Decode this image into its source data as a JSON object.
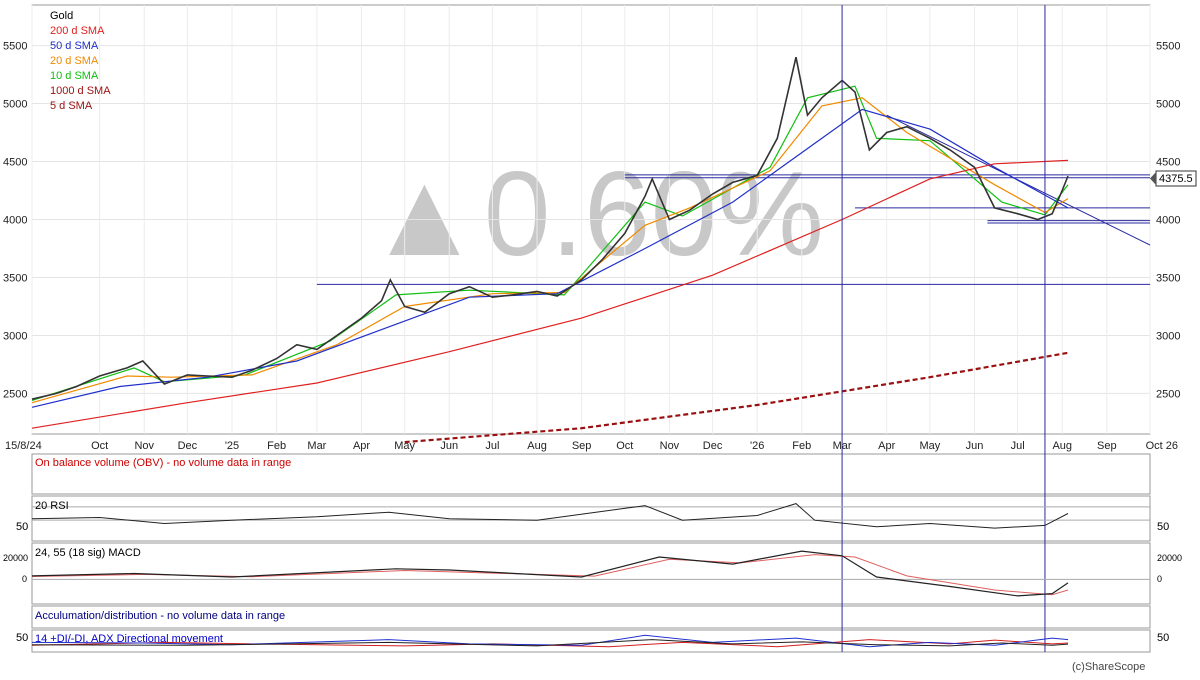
{
  "legend": {
    "title": "Gold",
    "items": [
      {
        "label": "200 d  SMA",
        "color": "#e02020"
      },
      {
        "label": "50 d  SMA",
        "color": "#2030c8"
      },
      {
        "label": "20 d  SMA",
        "color": "#f08a00"
      },
      {
        "label": "10 d  SMA",
        "color": "#10c010"
      },
      {
        "label": "1000 d  SMA",
        "color": "#9a1010"
      },
      {
        "label": "5 d  SMA",
        "color": "#9a1010"
      }
    ]
  },
  "overlay_text": "▲0.60%",
  "last_price_label": "4375.5",
  "watermark": "(c)ShareScope",
  "chart_data": {
    "type": "line",
    "title": "Gold",
    "x_start": "15/8/24",
    "x_end": "Oct 26",
    "ylim": [
      2150,
      5850
    ],
    "y_ticks": [
      2500,
      3000,
      3500,
      4000,
      4500,
      5000,
      5500
    ],
    "x_ticks": [
      {
        "label": "15/8/24",
        "date": "2024-08-15"
      },
      {
        "label": "Oct",
        "date": "2024-10-01"
      },
      {
        "label": "Nov",
        "date": "2024-11-01"
      },
      {
        "label": "Dec",
        "date": "2024-12-01"
      },
      {
        "label": "'25",
        "date": "2025-01-01"
      },
      {
        "label": "Feb",
        "date": "2025-02-01"
      },
      {
        "label": "Mar",
        "date": "2025-03-01"
      },
      {
        "label": "Apr",
        "date": "2025-04-01"
      },
      {
        "label": "May",
        "date": "2025-05-01"
      },
      {
        "label": "Jun",
        "date": "2025-06-01"
      },
      {
        "label": "Jul",
        "date": "2025-07-01"
      },
      {
        "label": "Aug",
        "date": "2025-08-01"
      },
      {
        "label": "Sep",
        "date": "2025-09-01"
      },
      {
        "label": "Oct",
        "date": "2025-10-01"
      },
      {
        "label": "Nov",
        "date": "2025-11-01"
      },
      {
        "label": "Dec",
        "date": "2025-12-01"
      },
      {
        "label": "'26",
        "date": "2026-01-01"
      },
      {
        "label": "Feb",
        "date": "2026-02-01"
      },
      {
        "label": "Mar",
        "date": "2026-03-01"
      },
      {
        "label": "Apr",
        "date": "2026-04-01"
      },
      {
        "label": "May",
        "date": "2026-05-01"
      },
      {
        "label": "Jun",
        "date": "2026-06-01"
      },
      {
        "label": "Jul",
        "date": "2026-07-01"
      },
      {
        "label": "Aug",
        "date": "2026-08-01"
      },
      {
        "label": "Sep",
        "date": "2026-09-01"
      },
      {
        "label": "Oct 26",
        "date": "2026-10-01"
      }
    ],
    "series": [
      {
        "name": "Gold",
        "color": "#333333",
        "points": [
          [
            "2024-08-15",
            2450
          ],
          [
            "2024-09-01",
            2500
          ],
          [
            "2024-09-15",
            2560
          ],
          [
            "2024-10-01",
            2650
          ],
          [
            "2024-10-20",
            2720
          ],
          [
            "2024-10-31",
            2780
          ],
          [
            "2024-11-15",
            2580
          ],
          [
            "2024-12-01",
            2660
          ],
          [
            "2024-12-15",
            2650
          ],
          [
            "2025-01-01",
            2640
          ],
          [
            "2025-01-15",
            2700
          ],
          [
            "2025-02-01",
            2800
          ],
          [
            "2025-02-15",
            2920
          ],
          [
            "2025-03-01",
            2880
          ],
          [
            "2025-03-15",
            3000
          ],
          [
            "2025-04-01",
            3150
          ],
          [
            "2025-04-15",
            3300
          ],
          [
            "2025-04-21",
            3480
          ],
          [
            "2025-05-01",
            3250
          ],
          [
            "2025-05-15",
            3200
          ],
          [
            "2025-06-01",
            3360
          ],
          [
            "2025-06-15",
            3420
          ],
          [
            "2025-07-01",
            3330
          ],
          [
            "2025-07-15",
            3350
          ],
          [
            "2025-08-01",
            3380
          ],
          [
            "2025-08-15",
            3340
          ],
          [
            "2025-09-01",
            3480
          ],
          [
            "2025-09-15",
            3650
          ],
          [
            "2025-10-01",
            3880
          ],
          [
            "2025-10-15",
            4200
          ],
          [
            "2025-10-20",
            4350
          ],
          [
            "2025-11-01",
            4000
          ],
          [
            "2025-11-15",
            4080
          ],
          [
            "2025-12-01",
            4220
          ],
          [
            "2025-12-15",
            4320
          ],
          [
            "2026-01-01",
            4380
          ],
          [
            "2026-01-15",
            4700
          ],
          [
            "2026-01-28",
            5400
          ],
          [
            "2026-02-05",
            4900
          ],
          [
            "2026-02-15",
            5050
          ],
          [
            "2026-03-01",
            5200
          ],
          [
            "2026-03-10",
            5100
          ],
          [
            "2026-03-20",
            4600
          ],
          [
            "2026-04-01",
            4750
          ],
          [
            "2026-04-15",
            4800
          ],
          [
            "2026-05-01",
            4700
          ],
          [
            "2026-05-15",
            4600
          ],
          [
            "2026-06-01",
            4450
          ],
          [
            "2026-06-15",
            4100
          ],
          [
            "2026-07-01",
            4050
          ],
          [
            "2026-07-15",
            4000
          ],
          [
            "2026-07-25",
            4050
          ],
          [
            "2026-08-01",
            4250
          ],
          [
            "2026-08-05",
            4375.5
          ]
        ]
      },
      {
        "name": "200 d  SMA",
        "color": "#e02020",
        "points": [
          [
            "2024-08-15",
            2200
          ],
          [
            "2024-12-01",
            2420
          ],
          [
            "2025-03-01",
            2590
          ],
          [
            "2025-06-01",
            2860
          ],
          [
            "2025-09-01",
            3150
          ],
          [
            "2025-12-01",
            3520
          ],
          [
            "2026-03-01",
            4000
          ],
          [
            "2026-05-01",
            4350
          ],
          [
            "2026-06-15",
            4480
          ],
          [
            "2026-08-05",
            4510
          ]
        ]
      },
      {
        "name": "50 d  SMA",
        "color": "#2030c8",
        "points": [
          [
            "2024-08-15",
            2380
          ],
          [
            "2024-10-15",
            2560
          ],
          [
            "2024-12-15",
            2640
          ],
          [
            "2025-02-15",
            2780
          ],
          [
            "2025-04-15",
            3050
          ],
          [
            "2025-06-15",
            3330
          ],
          [
            "2025-08-15",
            3360
          ],
          [
            "2025-10-15",
            3750
          ],
          [
            "2025-12-15",
            4150
          ],
          [
            "2026-02-15",
            4700
          ],
          [
            "2026-03-15",
            4950
          ],
          [
            "2026-05-01",
            4780
          ],
          [
            "2026-06-15",
            4450
          ],
          [
            "2026-08-05",
            4100
          ]
        ]
      },
      {
        "name": "20 d  SMA",
        "color": "#f08a00",
        "points": [
          [
            "2024-08-15",
            2420
          ],
          [
            "2024-10-20",
            2650
          ],
          [
            "2024-11-20",
            2640
          ],
          [
            "2025-01-15",
            2660
          ],
          [
            "2025-03-15",
            2920
          ],
          [
            "2025-05-01",
            3250
          ],
          [
            "2025-07-01",
            3360
          ],
          [
            "2025-08-20",
            3370
          ],
          [
            "2025-10-15",
            3950
          ],
          [
            "2025-11-15",
            4100
          ],
          [
            "2026-01-10",
            4420
          ],
          [
            "2026-02-15",
            4980
          ],
          [
            "2026-03-15",
            5050
          ],
          [
            "2026-04-15",
            4750
          ],
          [
            "2026-06-15",
            4300
          ],
          [
            "2026-07-20",
            4060
          ],
          [
            "2026-08-05",
            4180
          ]
        ]
      },
      {
        "name": "10 d  SMA",
        "color": "#10c010",
        "points": [
          [
            "2024-08-15",
            2440
          ],
          [
            "2024-10-25",
            2720
          ],
          [
            "2024-11-15",
            2600
          ],
          [
            "2025-01-10",
            2660
          ],
          [
            "2025-03-10",
            2950
          ],
          [
            "2025-04-25",
            3350
          ],
          [
            "2025-06-15",
            3390
          ],
          [
            "2025-08-20",
            3350
          ],
          [
            "2025-10-15",
            4150
          ],
          [
            "2025-11-10",
            4030
          ],
          [
            "2026-01-10",
            4450
          ],
          [
            "2026-02-05",
            5050
          ],
          [
            "2026-03-10",
            5150
          ],
          [
            "2026-03-25",
            4700
          ],
          [
            "2026-05-01",
            4680
          ],
          [
            "2026-06-20",
            4150
          ],
          [
            "2026-07-20",
            4040
          ],
          [
            "2026-08-05",
            4300
          ]
        ]
      },
      {
        "name": "1000 d  SMA",
        "color": "#9a1010",
        "dashed": true,
        "points": [
          [
            "2025-05-01",
            2080
          ],
          [
            "2025-09-01",
            2200
          ],
          [
            "2026-01-01",
            2400
          ],
          [
            "2026-05-01",
            2640
          ],
          [
            "2026-08-05",
            2850
          ]
        ]
      }
    ],
    "vertical_lines": [
      "2026-03-01",
      "2026-07-20"
    ],
    "horizontal_lines": [
      {
        "y": 3440,
        "x_from": "2025-03-01",
        "x_to": "2026-10-01"
      },
      {
        "y": 4385,
        "x_from": "2025-10-01",
        "x_to": "2026-10-01"
      },
      {
        "y": 4360,
        "x_from": "2025-10-01",
        "x_to": "2026-10-01"
      },
      {
        "y": 4100,
        "x_from": "2026-03-10",
        "x_to": "2026-10-01"
      },
      {
        "y": 3990,
        "x_from": "2026-06-10",
        "x_to": "2026-10-01"
      },
      {
        "y": 3970,
        "x_from": "2026-06-10",
        "x_to": "2026-10-01"
      }
    ],
    "trend_lines": [
      {
        "from": [
          "2026-04-01",
          4900
        ],
        "to": [
          "2026-10-01",
          3780
        ]
      }
    ],
    "indicators": [
      {
        "label": "On balance volume (OBV) - no volume data in range",
        "label_color": "#cc0000"
      },
      {
        "label": "20 RSI",
        "label_color": "#000000",
        "right_tick": "50",
        "left_tick": "50"
      },
      {
        "label": "24, 55 (18 sig) MACD",
        "label_color": "#000000",
        "right_ticks": [
          "20000",
          "0"
        ],
        "left_ticks": [
          "20000",
          "0"
        ]
      },
      {
        "label": "Acculumation/distribution - no volume data in range",
        "label_color": "#000080"
      },
      {
        "label": "14 +DI/-DI, ADX Directional movement",
        "label_color": "#0000cc",
        "right_tick": "50",
        "left_tick": "50"
      }
    ],
    "rsi": {
      "points": [
        [
          "2024-08-15",
          52
        ],
        [
          "2024-10-01",
          54
        ],
        [
          "2024-11-15",
          45
        ],
        [
          "2025-01-01",
          50
        ],
        [
          "2025-03-01",
          55
        ],
        [
          "2025-04-20",
          62
        ],
        [
          "2025-06-01",
          52
        ],
        [
          "2025-08-01",
          50
        ],
        [
          "2025-10-15",
          72
        ],
        [
          "2025-11-10",
          50
        ],
        [
          "2026-01-01",
          57
        ],
        [
          "2026-01-28",
          75
        ],
        [
          "2026-02-10",
          50
        ],
        [
          "2026-03-25",
          40
        ],
        [
          "2026-05-01",
          45
        ],
        [
          "2026-06-15",
          38
        ],
        [
          "2026-07-20",
          42
        ],
        [
          "2026-08-05",
          60
        ]
      ]
    },
    "macd": {
      "macd_points": [
        [
          "2024-08-15",
          3000
        ],
        [
          "2024-10-25",
          5000
        ],
        [
          "2025-01-01",
          2000
        ],
        [
          "2025-04-25",
          9000
        ],
        [
          "2025-06-01",
          8000
        ],
        [
          "2025-09-01",
          2000
        ],
        [
          "2025-10-25",
          19000
        ],
        [
          "2025-12-15",
          13000
        ],
        [
          "2026-02-01",
          24000
        ],
        [
          "2026-03-01",
          20000
        ],
        [
          "2026-03-25",
          2000
        ],
        [
          "2026-05-15",
          -6000
        ],
        [
          "2026-07-01",
          -14000
        ],
        [
          "2026-07-25",
          -12000
        ],
        [
          "2026-08-05",
          -3000
        ]
      ],
      "signal_points": [
        [
          "2024-08-15",
          2500
        ],
        [
          "2024-11-01",
          4200
        ],
        [
          "2025-01-15",
          2300
        ],
        [
          "2025-05-01",
          7500
        ],
        [
          "2025-09-10",
          2800
        ],
        [
          "2025-11-01",
          17000
        ],
        [
          "2025-12-20",
          14000
        ],
        [
          "2026-02-10",
          21000
        ],
        [
          "2026-03-10",
          19000
        ],
        [
          "2026-04-15",
          3000
        ],
        [
          "2026-06-15",
          -9000
        ],
        [
          "2026-07-25",
          -13000
        ],
        [
          "2026-08-05",
          -9000
        ]
      ]
    },
    "dmi": {
      "pdi_points": [
        [
          "2024-08-15",
          30
        ],
        [
          "2024-11-01",
          28
        ],
        [
          "2025-01-01",
          22
        ],
        [
          "2025-04-20",
          40
        ],
        [
          "2025-06-15",
          25
        ],
        [
          "2025-09-01",
          20
        ],
        [
          "2025-10-15",
          55
        ],
        [
          "2025-12-01",
          30
        ],
        [
          "2026-01-28",
          45
        ],
        [
          "2026-03-20",
          15
        ],
        [
          "2026-05-01",
          30
        ],
        [
          "2026-06-15",
          20
        ],
        [
          "2026-07-25",
          45
        ],
        [
          "2026-08-05",
          40
        ]
      ],
      "mdi_points": [
        [
          "2024-08-15",
          20
        ],
        [
          "2024-11-15",
          30
        ],
        [
          "2025-01-15",
          25
        ],
        [
          "2025-05-01",
          18
        ],
        [
          "2025-07-01",
          25
        ],
        [
          "2025-09-20",
          15
        ],
        [
          "2025-11-10",
          30
        ],
        [
          "2026-01-15",
          15
        ],
        [
          "2026-03-20",
          40
        ],
        [
          "2026-05-15",
          25
        ],
        [
          "2026-06-15",
          38
        ],
        [
          "2026-07-25",
          25
        ],
        [
          "2026-08-05",
          28
        ]
      ],
      "adx_points": [
        [
          "2024-08-15",
          22
        ],
        [
          "2024-12-01",
          20
        ],
        [
          "2025-04-20",
          30
        ],
        [
          "2025-08-01",
          18
        ],
        [
          "2025-10-20",
          40
        ],
        [
          "2025-12-15",
          25
        ],
        [
          "2026-02-01",
          32
        ],
        [
          "2026-03-25",
          22
        ],
        [
          "2026-05-15",
          18
        ],
        [
          "2026-06-20",
          28
        ],
        [
          "2026-07-25",
          20
        ],
        [
          "2026-08-05",
          24
        ]
      ]
    }
  }
}
